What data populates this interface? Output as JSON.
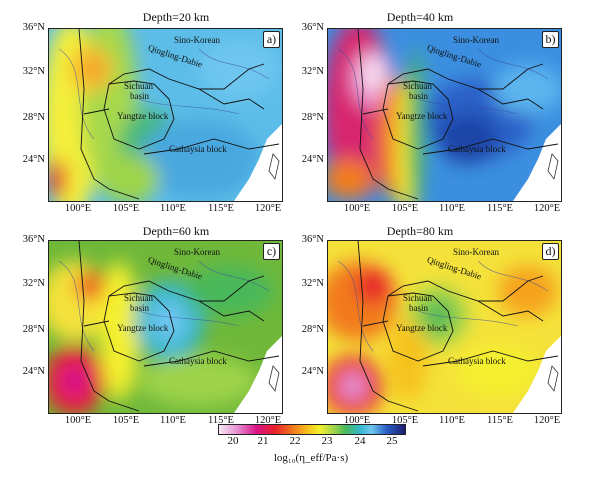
{
  "panels": [
    {
      "title": "Depth=20 km",
      "letter": "a)",
      "theme": "p20"
    },
    {
      "title": "Depth=40 km",
      "letter": "b)",
      "theme": "p40"
    },
    {
      "title": "Depth=60 km",
      "letter": "c)",
      "theme": "p60"
    },
    {
      "title": "Depth=80 km",
      "letter": "d)",
      "theme": "p80"
    }
  ],
  "y_ticks": [
    "36°N",
    "32°N",
    "28°N",
    "24°N"
  ],
  "x_ticks": [
    "100°E",
    "105°E",
    "110°E",
    "115°E",
    "120°E"
  ],
  "regions": {
    "sino_korean": "Sino-Korean",
    "qinling_dabie": "Qingling-Dabie",
    "sichuan_basin_1": "Sichuan",
    "sichuan_basin_2": "basin",
    "yangtze_block": "Yangtze block",
    "cathaysia_block": "Cathaysia block"
  },
  "colorbar": {
    "ticks": [
      "20",
      "21",
      "22",
      "23",
      "24",
      "25"
    ],
    "label": "log₁₀(η_eff/Pa·s)",
    "colors": {
      "low": "#f7e6f4",
      "mid": "#f4f02e",
      "high": "#1c1c70"
    }
  }
}
